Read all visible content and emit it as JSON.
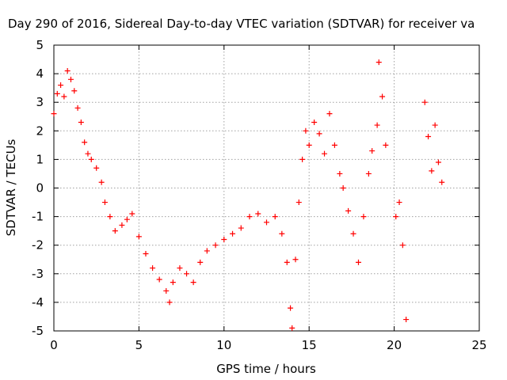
{
  "chart_data": {
    "type": "scatter",
    "title": "Day 290 of 2016, Sidereal Day-to-day VTEC variation (SDTVAR) for receiver va",
    "xlabel": "GPS time / hours",
    "ylabel": "SDTVAR / TECUs",
    "xlim": [
      0,
      25
    ],
    "ylim": [
      -5,
      5
    ],
    "xticks": [
      "0",
      "5",
      "10",
      "15",
      "20",
      "25"
    ],
    "yticks": [
      "-5",
      "-4",
      "-3",
      "-2",
      "-1",
      "0",
      "1",
      "2",
      "3",
      "4",
      "5"
    ],
    "grid": true,
    "marker": "plus",
    "color": "#ff0000",
    "series": [
      {
        "name": "",
        "x": [
          0.0,
          0.2,
          0.4,
          0.6,
          0.8,
          1.0,
          1.2,
          1.4,
          1.6,
          1.8,
          2.0,
          2.2,
          2.5,
          2.8,
          3.0,
          3.3,
          3.6,
          4.0,
          4.3,
          4.6,
          5.0,
          5.4,
          5.8,
          6.2,
          6.6,
          6.8,
          7.0,
          7.4,
          7.8,
          8.2,
          8.6,
          9.0,
          9.5,
          10.0,
          10.5,
          11.0,
          11.5,
          12.0,
          12.5,
          13.0,
          13.4,
          13.7,
          13.9,
          14.0,
          14.2,
          14.4,
          14.6,
          14.8,
          15.0,
          15.3,
          15.6,
          15.9,
          16.2,
          16.5,
          16.8,
          17.0,
          17.3,
          17.6,
          17.9,
          18.2,
          18.5,
          18.7,
          19.0,
          19.1,
          19.3,
          19.5,
          20.1,
          20.3,
          20.5,
          20.7,
          21.8,
          22.0,
          22.2,
          22.4,
          22.6,
          22.8
        ],
        "y": [
          2.6,
          3.3,
          3.6,
          3.2,
          4.1,
          3.8,
          3.4,
          2.8,
          2.3,
          1.6,
          1.2,
          1.0,
          0.7,
          0.2,
          -0.5,
          -1.0,
          -1.5,
          -1.3,
          -1.1,
          -0.9,
          -1.7,
          -2.3,
          -2.8,
          -3.2,
          -3.6,
          -4.0,
          -3.3,
          -2.8,
          -3.0,
          -3.3,
          -2.6,
          -2.2,
          -2.0,
          -1.8,
          -1.6,
          -1.4,
          -1.0,
          -0.9,
          -1.2,
          -1.0,
          -1.6,
          -2.6,
          -4.2,
          -4.9,
          -2.5,
          -0.5,
          1.0,
          2.0,
          1.5,
          2.3,
          1.9,
          1.2,
          2.6,
          1.5,
          0.5,
          0.0,
          -0.8,
          -1.6,
          -2.6,
          -1.0,
          0.5,
          1.3,
          2.2,
          4.4,
          3.2,
          1.5,
          -1.0,
          -0.5,
          -2.0,
          -4.6,
          3.0,
          1.8,
          0.6,
          2.2,
          0.9,
          0.2
        ]
      }
    ]
  }
}
